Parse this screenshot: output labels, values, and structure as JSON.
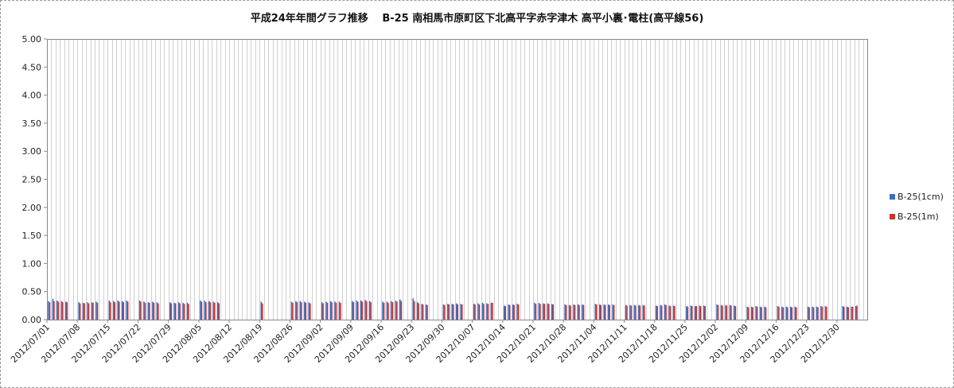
{
  "chart_data": {
    "type": "bar",
    "title": "平成24年年間グラフ推移　 B-25 南相馬市原町区下北高平字赤字津木 高平小裏･電柱(高平線56)",
    "ylim": [
      0,
      5
    ],
    "yticks": [
      "0.00",
      "0.50",
      "1.00",
      "1.50",
      "2.00",
      "2.50",
      "3.00",
      "3.50",
      "4.00",
      "4.50",
      "5.00"
    ],
    "xticks": [
      "2012/07/01",
      "2012/07/08",
      "2012/07/15",
      "2012/07/22",
      "2012/07/29",
      "2012/08/05",
      "2012/08/12",
      "2012/08/19",
      "2012/08/26",
      "2012/09/02",
      "2012/09/09",
      "2012/09/16",
      "2012/09/23",
      "2012/09/30",
      "2012/10/07",
      "2012/10/14",
      "2012/10/21",
      "2012/10/28",
      "2012/11/04",
      "2012/11/11",
      "2012/11/18",
      "2012/11/25",
      "2012/12/02",
      "2012/12/09",
      "2012/12/16",
      "2012/12/23",
      "2012/12/30"
    ],
    "x_start": "2012/07/01",
    "x_end": "2012/12/30",
    "grid": "vertical",
    "legend_position": "right",
    "series": [
      {
        "name": "B-25(1cm)",
        "color": "#3a6fc4",
        "values": [
          0.33,
          0.37,
          0.34,
          0.33,
          0.32,
          null,
          null,
          0.31,
          0.3,
          0.31,
          0.31,
          0.32,
          null,
          null,
          0.34,
          0.33,
          0.34,
          0.33,
          0.34,
          null,
          null,
          0.34,
          0.32,
          0.31,
          0.32,
          0.31,
          null,
          null,
          0.31,
          0.3,
          0.31,
          0.3,
          0.3,
          null,
          null,
          0.34,
          0.34,
          0.33,
          0.32,
          0.31,
          null,
          null,
          null,
          null,
          null,
          null,
          null,
          null,
          null,
          0.32,
          null,
          null,
          null,
          null,
          null,
          null,
          0.32,
          0.33,
          0.33,
          0.32,
          0.31,
          null,
          null,
          0.31,
          0.32,
          0.33,
          0.32,
          0.32,
          null,
          null,
          0.33,
          0.34,
          0.34,
          0.35,
          0.33,
          null,
          null,
          0.32,
          0.32,
          0.33,
          0.34,
          0.36,
          null,
          null,
          0.38,
          0.31,
          0.28,
          0.27,
          null,
          null,
          null,
          0.27,
          0.28,
          0.28,
          0.29,
          0.28,
          null,
          null,
          0.28,
          0.29,
          0.3,
          0.29,
          0.3,
          null,
          null,
          0.25,
          0.27,
          0.27,
          0.28,
          null,
          null,
          null,
          0.3,
          0.3,
          0.29,
          0.29,
          0.28,
          null,
          null,
          0.27,
          0.26,
          0.27,
          0.27,
          0.27,
          null,
          null,
          0.28,
          0.27,
          0.27,
          0.27,
          0.27,
          null,
          null,
          0.26,
          0.26,
          0.26,
          0.26,
          0.26,
          null,
          null,
          0.25,
          0.26,
          0.27,
          0.25,
          0.25,
          null,
          null,
          0.24,
          0.25,
          0.24,
          0.25,
          0.25,
          null,
          null,
          0.27,
          0.26,
          0.26,
          0.26,
          0.25,
          null,
          null,
          0.23,
          0.23,
          0.24,
          0.23,
          0.23,
          null,
          null,
          0.24,
          0.23,
          0.23,
          0.23,
          0.23,
          null,
          null,
          0.23,
          0.23,
          0.23,
          0.24,
          0.24,
          null,
          null,
          null,
          0.24,
          0.23,
          0.23,
          0.24,
          null,
          null
        ]
      },
      {
        "name": "B-25(1m)",
        "color": "#cc3030",
        "values": [
          0.31,
          0.33,
          0.32,
          0.31,
          0.31,
          null,
          null,
          0.29,
          0.29,
          0.29,
          0.3,
          0.3,
          null,
          null,
          0.31,
          0.31,
          0.32,
          0.31,
          0.32,
          null,
          null,
          0.32,
          0.3,
          0.3,
          0.3,
          0.29,
          null,
          null,
          0.29,
          0.29,
          0.29,
          0.28,
          0.28,
          null,
          null,
          0.32,
          0.31,
          0.31,
          0.3,
          0.29,
          null,
          null,
          null,
          null,
          null,
          null,
          null,
          null,
          null,
          0.29,
          null,
          null,
          null,
          null,
          null,
          null,
          0.3,
          0.31,
          0.31,
          0.3,
          0.29,
          null,
          null,
          0.29,
          0.3,
          0.31,
          0.3,
          0.3,
          null,
          null,
          0.31,
          0.32,
          0.32,
          0.33,
          0.31,
          null,
          null,
          0.3,
          0.3,
          0.31,
          0.32,
          0.33,
          null,
          null,
          0.33,
          0.29,
          0.27,
          0.26,
          null,
          null,
          null,
          0.26,
          0.27,
          0.27,
          0.27,
          0.27,
          null,
          null,
          0.27,
          0.27,
          0.28,
          0.28,
          0.3,
          null,
          null,
          0.24,
          0.26,
          0.26,
          0.27,
          null,
          null,
          null,
          0.28,
          0.28,
          0.28,
          0.28,
          0.27,
          null,
          null,
          0.26,
          0.25,
          0.26,
          0.26,
          0.26,
          null,
          null,
          0.27,
          0.26,
          0.26,
          0.26,
          0.26,
          null,
          null,
          0.25,
          0.25,
          0.25,
          0.25,
          0.25,
          null,
          null,
          0.24,
          0.25,
          0.26,
          0.24,
          0.24,
          null,
          null,
          0.23,
          0.24,
          0.24,
          0.24,
          0.24,
          null,
          null,
          0.26,
          0.25,
          0.25,
          0.25,
          0.24,
          null,
          null,
          0.22,
          0.22,
          0.23,
          0.22,
          0.22,
          null,
          null,
          0.23,
          0.22,
          0.22,
          0.22,
          0.22,
          null,
          null,
          0.22,
          0.22,
          0.22,
          0.23,
          0.23,
          null,
          null,
          null,
          0.23,
          0.22,
          0.23,
          0.25,
          null,
          null
        ]
      }
    ]
  }
}
